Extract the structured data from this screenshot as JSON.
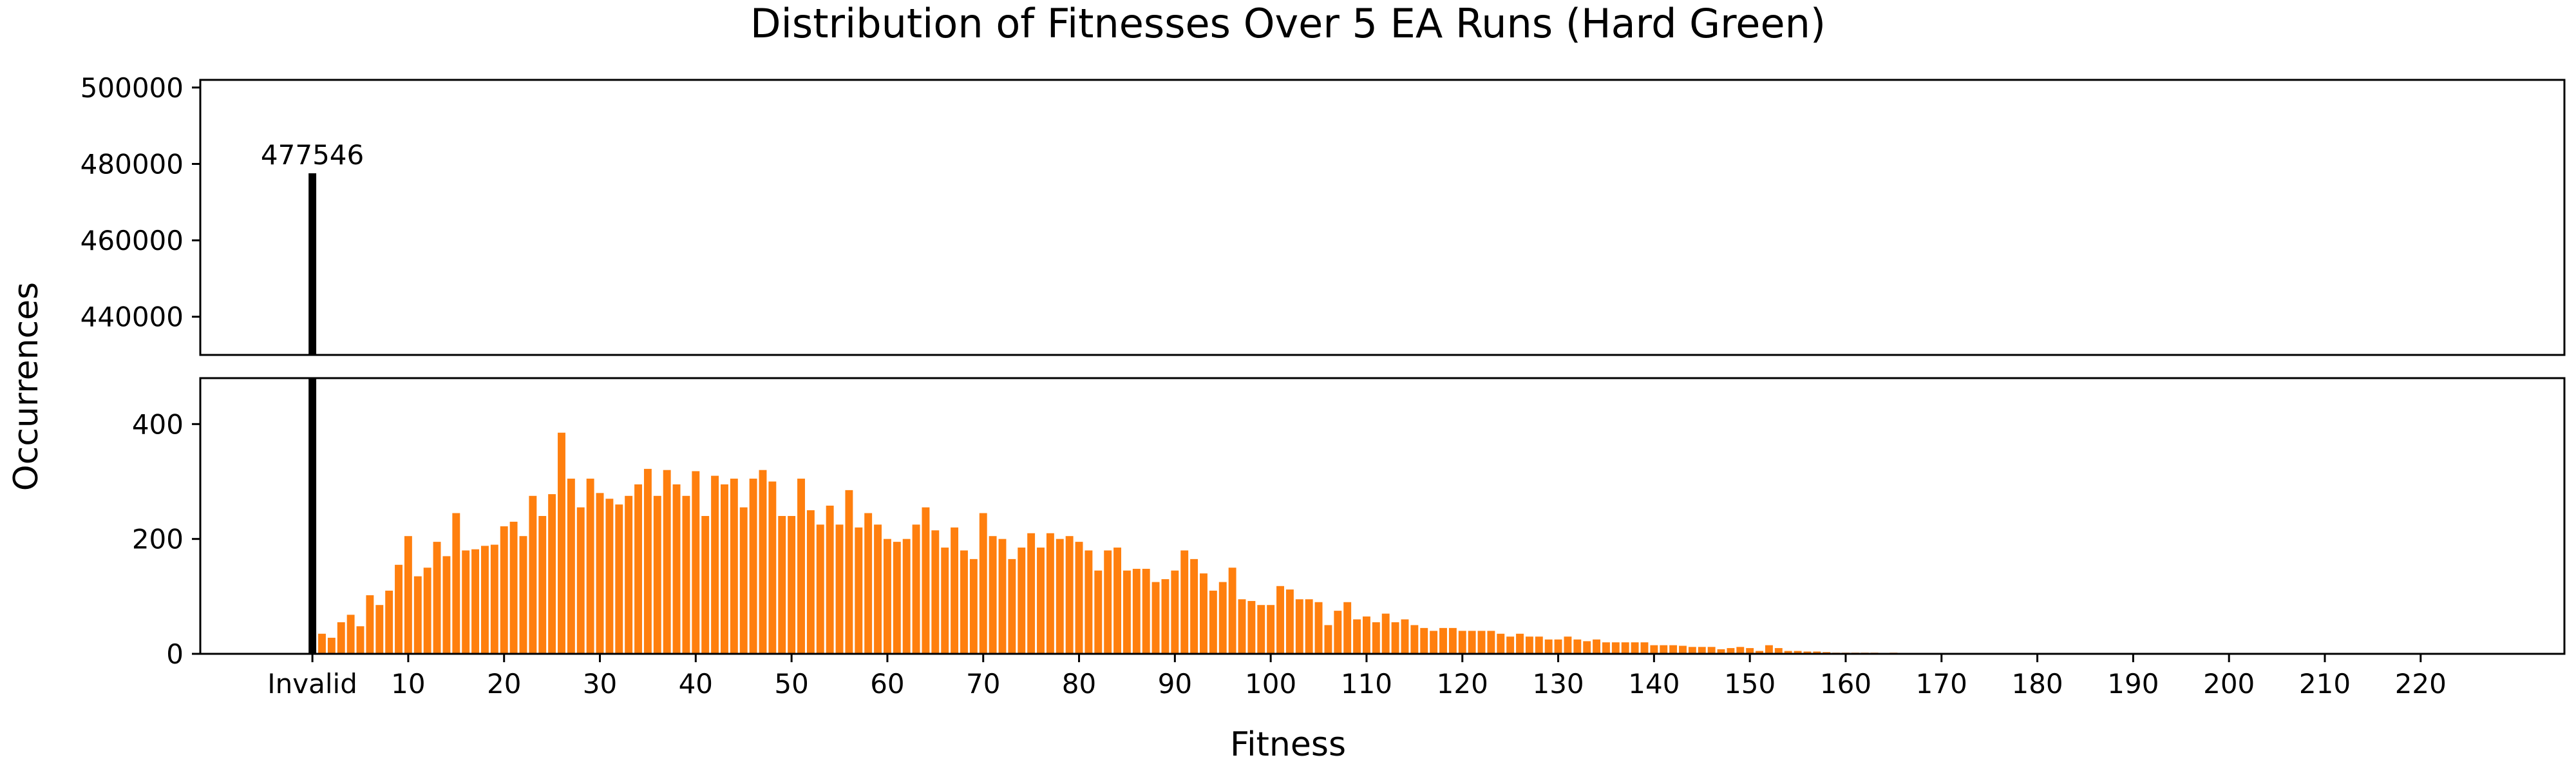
{
  "chart_data": {
    "type": "bar",
    "title": "Distribution of Fitnesses Over 5 EA Runs (Hard Green)",
    "xlabel": "Fitness",
    "ylabel": "Occurrences",
    "xtick_labels": [
      {
        "x": 0,
        "label": "Invalid"
      },
      {
        "x": 10,
        "label": "10"
      },
      {
        "x": 20,
        "label": "20"
      },
      {
        "x": 30,
        "label": "30"
      },
      {
        "x": 40,
        "label": "40"
      },
      {
        "x": 50,
        "label": "50"
      },
      {
        "x": 60,
        "label": "60"
      },
      {
        "x": 70,
        "label": "70"
      },
      {
        "x": 80,
        "label": "80"
      },
      {
        "x": 90,
        "label": "90"
      },
      {
        "x": 100,
        "label": "100"
      },
      {
        "x": 110,
        "label": "110"
      },
      {
        "x": 120,
        "label": "120"
      },
      {
        "x": 130,
        "label": "130"
      },
      {
        "x": 140,
        "label": "140"
      },
      {
        "x": 150,
        "label": "150"
      },
      {
        "x": 160,
        "label": "160"
      },
      {
        "x": 170,
        "label": "170"
      },
      {
        "x": 180,
        "label": "180"
      },
      {
        "x": 190,
        "label": "190"
      },
      {
        "x": 200,
        "label": "200"
      },
      {
        "x": 210,
        "label": "210"
      },
      {
        "x": 220,
        "label": "220"
      }
    ],
    "xlim": [
      -11.7,
      235
    ],
    "top_panel": {
      "ylim": [
        430000,
        502000
      ],
      "yticks": [
        440000,
        460000,
        480000,
        500000
      ]
    },
    "bottom_panel": {
      "ylim": [
        0,
        480
      ],
      "yticks": [
        0,
        200,
        400
      ]
    },
    "invalid": {
      "x": 0,
      "value": 477546,
      "label": "477546",
      "color": "#000000"
    },
    "bar_color": "#ff7f0e",
    "x_start": 1,
    "values": [
      35,
      28,
      55,
      68,
      48,
      102,
      85,
      110,
      155,
      205,
      135,
      150,
      195,
      170,
      245,
      180,
      182,
      188,
      190,
      222,
      230,
      205,
      275,
      240,
      278,
      385,
      305,
      255,
      305,
      280,
      270,
      260,
      275,
      295,
      322,
      275,
      320,
      295,
      275,
      318,
      240,
      310,
      295,
      305,
      255,
      305,
      320,
      300,
      240,
      240,
      305,
      250,
      225,
      258,
      225,
      285,
      220,
      245,
      225,
      200,
      195,
      200,
      225,
      255,
      215,
      185,
      220,
      180,
      165,
      245,
      205,
      200,
      165,
      185,
      210,
      185,
      210,
      200,
      205,
      195,
      180,
      145,
      180,
      185,
      145,
      148,
      148,
      125,
      130,
      145,
      180,
      165,
      140,
      110,
      125,
      150,
      95,
      92,
      85,
      85,
      118,
      112,
      95,
      95,
      90,
      50,
      75,
      90,
      60,
      65,
      55,
      70,
      55,
      60,
      50,
      45,
      40,
      45,
      45,
      40,
      40,
      40,
      40,
      35,
      30,
      35,
      30,
      30,
      25,
      25,
      30,
      25,
      22,
      25,
      20,
      20,
      20,
      20,
      20,
      15,
      15,
      15,
      14,
      12,
      12,
      12,
      8,
      10,
      12,
      10,
      5,
      15,
      10,
      5,
      5,
      4,
      4,
      3,
      2,
      2,
      2,
      2,
      2,
      1,
      2,
      1,
      1,
      1,
      1,
      1,
      1,
      0,
      1,
      0,
      1,
      0,
      0,
      0,
      0,
      0,
      0,
      0,
      0,
      0,
      0,
      0,
      0,
      0,
      0,
      0,
      0,
      0,
      0,
      0,
      0,
      0,
      0,
      0,
      0,
      0,
      0,
      0,
      0,
      0,
      0,
      0,
      0,
      0,
      0,
      0,
      0,
      0,
      0,
      0,
      0,
      0,
      0,
      0,
      0,
      0,
      0,
      0,
      0,
      0,
      0,
      0,
      0,
      0,
      0,
      0,
      0,
      0,
      0,
      0,
      0,
      0,
      0,
      0,
      0,
      0,
      0,
      0,
      0,
      0,
      0,
      0,
      0,
      0,
      0,
      0,
      0,
      0,
      0,
      0,
      0,
      0,
      0,
      0
    ]
  }
}
